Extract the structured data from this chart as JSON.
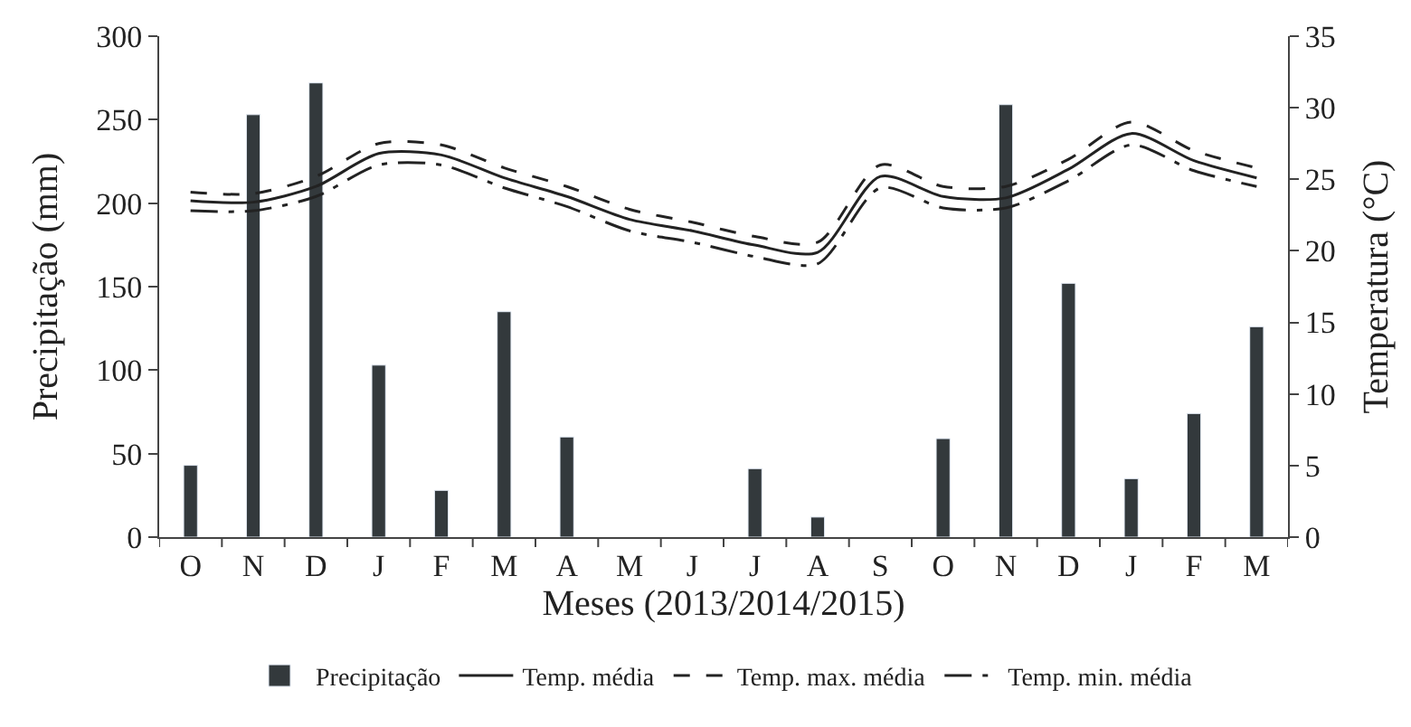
{
  "chart_data": {
    "type": "bar",
    "xlabel": "Meses (2013/2014/2015)",
    "ylabel": "Precipitação (mm)",
    "y2label": "Temperatura (°C)",
    "categories": [
      "O",
      "N",
      "D",
      "J",
      "F",
      "M",
      "A",
      "M",
      "J",
      "J",
      "A",
      "S",
      "O",
      "N",
      "D",
      "J",
      "F",
      "M"
    ],
    "series": [
      {
        "name": "Precipitação",
        "color": "#33393c",
        "values": [
          43,
          253,
          272,
          103,
          28,
          135,
          60,
          null,
          null,
          41,
          12,
          null,
          59,
          259,
          152,
          35,
          74,
          126
        ]
      },
      {
        "name": "Temp. média",
        "type": "line",
        "axis": "y2",
        "color": "#222222",
        "line_style": "solid",
        "values": [
          23.5,
          23.4,
          24.5,
          26.8,
          26.7,
          25.1,
          23.8,
          22.2,
          21.4,
          20.4,
          19.9,
          25.2,
          23.8,
          23.7,
          25.7,
          28.2,
          26.3,
          25.1
        ]
      },
      {
        "name": "Temp. max. média",
        "type": "line",
        "axis": "y2",
        "color": "#222222",
        "line_style": "dashed",
        "values": [
          24.1,
          24.0,
          25.2,
          27.5,
          27.4,
          25.8,
          24.5,
          22.9,
          22.0,
          21.0,
          20.6,
          26.0,
          24.5,
          24.5,
          26.4,
          29.0,
          27.0,
          25.8
        ]
      },
      {
        "name": "Temp. min. média",
        "type": "line",
        "axis": "y2",
        "color": "#222222",
        "line_style": "dashdot",
        "values": [
          22.8,
          22.8,
          23.8,
          26.0,
          26.0,
          24.4,
          23.1,
          21.4,
          20.6,
          19.6,
          19.1,
          24.4,
          23.0,
          23.0,
          24.9,
          27.4,
          25.6,
          24.5
        ]
      }
    ],
    "ylim": [
      0,
      300
    ],
    "yticks": [
      0,
      50,
      100,
      150,
      200,
      250,
      300
    ],
    "y2lim": [
      0,
      35
    ],
    "y2ticks": [
      0,
      5,
      10,
      15,
      20,
      25,
      30,
      35
    ],
    "grid": false,
    "legend": "bottom",
    "marker": "none"
  }
}
